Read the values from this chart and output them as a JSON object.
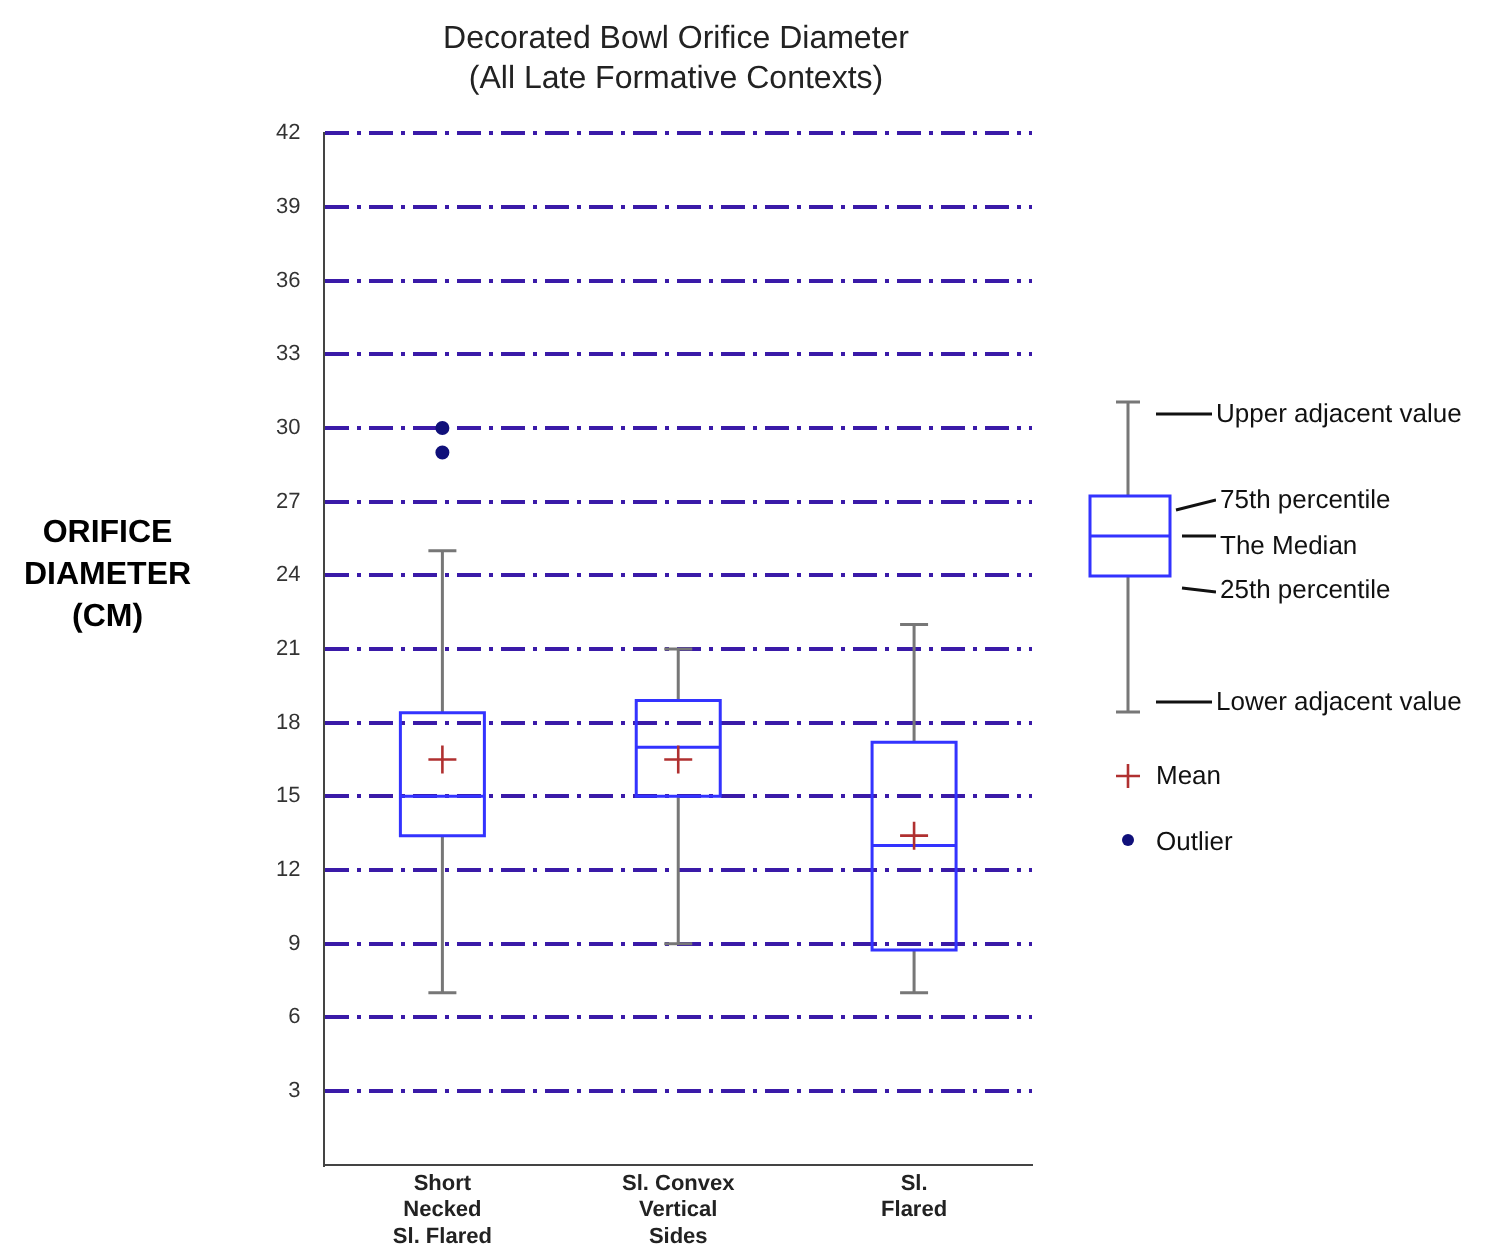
{
  "chart_data": {
    "type": "box",
    "title": "Decorated Bowl Orifice Diameter",
    "subtitle": "(All Late Formative Contexts)",
    "ylabel": "ORIFICE\nDIAMETER\n(CM)",
    "categories": [
      "Short\nNecked\nSl. Flared",
      "Sl. Convex\nVertical\nSides",
      "Sl.\nFlared"
    ],
    "boxes": [
      {
        "low": 7,
        "q1": 13.4,
        "median": 15,
        "q3": 18.4,
        "high": 25,
        "mean": 16.5,
        "outliers": [
          30,
          29
        ]
      },
      {
        "low": 9,
        "q1": 15,
        "median": 17,
        "q3": 18.9,
        "high": 21,
        "mean": 16.5
      },
      {
        "low": 7,
        "q1": 8.75,
        "median": 13,
        "q3": 17.2,
        "high": 22,
        "mean": 13.4
      }
    ],
    "color": "#3333ff",
    "ylim": [
      0,
      42
    ],
    "yticks": [
      3,
      6,
      9,
      12,
      15,
      18,
      21,
      24,
      27,
      30,
      33,
      36,
      39,
      42
    ],
    "grid": "y",
    "line_style": "dashdot",
    "annotations": [
      "Upper adjacent value",
      "75th percentile",
      "The Median",
      "25th percentile",
      "Lower adjacent value",
      "Mean",
      "Outlier"
    ]
  }
}
